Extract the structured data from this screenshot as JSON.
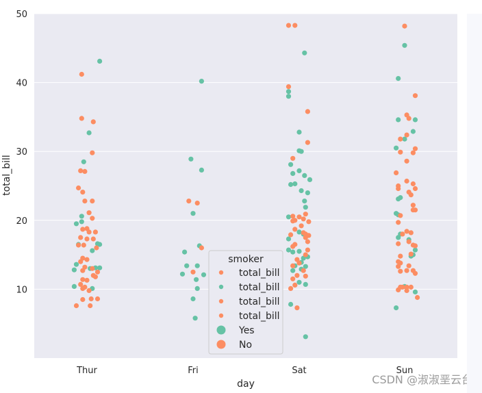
{
  "chart_data": {
    "type": "scatter",
    "subtype": "strip",
    "xlabel": "day",
    "ylabel": "total_bill",
    "categories": [
      "Thur",
      "Fri",
      "Sat",
      "Sun"
    ],
    "ylim": [
      0,
      50
    ],
    "yticks": [
      10,
      20,
      30,
      40,
      50
    ],
    "grid": true,
    "background": "#eaeaf2",
    "legend": {
      "title": "smoker",
      "placement": "lower center",
      "entries": [
        {
          "label": "total_bill",
          "color": "#fc8d62",
          "marker": "small"
        },
        {
          "label": "total_bill",
          "color": "#66c2a5",
          "marker": "small"
        },
        {
          "label": "total_bill",
          "color": "#fc8d62",
          "marker": "small"
        },
        {
          "label": "total_bill",
          "color": "#fc8d62",
          "marker": "small"
        },
        {
          "label": "Yes",
          "color": "#66c2a5",
          "marker": "large"
        },
        {
          "label": "No",
          "color": "#fc8d62",
          "marker": "large"
        }
      ]
    },
    "series": [
      {
        "name": "Yes",
        "color": "#66c2a5",
        "points": [
          [
            "Thur",
            -0.05,
            20.6
          ],
          [
            "Thur",
            -0.1,
            19.5
          ],
          [
            "Thur",
            0.12,
            16.5
          ],
          [
            "Thur",
            -0.08,
            16.5
          ],
          [
            "Thur",
            0.05,
            15.6
          ],
          [
            "Thur",
            -0.1,
            13.6
          ],
          [
            "Thur",
            0.08,
            13.1
          ],
          [
            "Thur",
            0.12,
            13.1
          ],
          [
            "Thur",
            -0.12,
            12.8
          ],
          [
            "Thur",
            0.03,
            13.0
          ],
          [
            "Thur",
            -0.12,
            10.4
          ],
          [
            "Thur",
            0.05,
            10.1
          ],
          [
            "Thur",
            -0.03,
            28.5
          ],
          [
            "Thur",
            0.02,
            32.7
          ],
          [
            "Thur",
            0.12,
            43.1
          ],
          [
            "Thur",
            -0.05,
            19.8
          ],
          [
            "Thur",
            0.1,
            16.6
          ],
          [
            "Fri",
            -0.02,
            28.9
          ],
          [
            "Fri",
            0.08,
            27.3
          ],
          [
            "Fri",
            0.0,
            21.0
          ],
          [
            "Fri",
            0.06,
            16.3
          ],
          [
            "Fri",
            -0.08,
            15.4
          ],
          [
            "Fri",
            -0.06,
            13.4
          ],
          [
            "Fri",
            0.04,
            13.4
          ],
          [
            "Fri",
            -0.1,
            12.2
          ],
          [
            "Fri",
            0.1,
            12.1
          ],
          [
            "Fri",
            0.03,
            11.4
          ],
          [
            "Fri",
            0.04,
            10.1
          ],
          [
            "Fri",
            0.0,
            8.6
          ],
          [
            "Fri",
            0.02,
            5.8
          ],
          [
            "Fri",
            0.08,
            40.2
          ],
          [
            "Sat",
            0.05,
            44.3
          ],
          [
            "Sat",
            -0.1,
            38.7
          ],
          [
            "Sat",
            -0.1,
            38.0
          ],
          [
            "Sat",
            0.0,
            32.8
          ],
          [
            "Sat",
            0.0,
            30.1
          ],
          [
            "Sat",
            0.02,
            30.0
          ],
          [
            "Sat",
            -0.08,
            28.1
          ],
          [
            "Sat",
            0.0,
            27.2
          ],
          [
            "Sat",
            -0.06,
            26.8
          ],
          [
            "Sat",
            0.05,
            26.5
          ],
          [
            "Sat",
            0.1,
            25.9
          ],
          [
            "Sat",
            -0.04,
            25.3
          ],
          [
            "Sat",
            -0.08,
            25.2
          ],
          [
            "Sat",
            0.02,
            24.3
          ],
          [
            "Sat",
            0.08,
            24.0
          ],
          [
            "Sat",
            0.05,
            22.8
          ],
          [
            "Sat",
            0.06,
            21.9
          ],
          [
            "Sat",
            -0.1,
            20.5
          ],
          [
            "Sat",
            0.0,
            18.3
          ],
          [
            "Sat",
            0.04,
            18.0
          ],
          [
            "Sat",
            -0.1,
            15.7
          ],
          [
            "Sat",
            -0.06,
            15.4
          ],
          [
            "Sat",
            0.0,
            15.5
          ],
          [
            "Sat",
            0.04,
            14.5
          ],
          [
            "Sat",
            0.02,
            13.9
          ],
          [
            "Sat",
            -0.04,
            13.4
          ],
          [
            "Sat",
            0.06,
            13.3
          ],
          [
            "Sat",
            -0.06,
            12.7
          ],
          [
            "Sat",
            0.02,
            12.9
          ],
          [
            "Sat",
            0.0,
            11.0
          ],
          [
            "Sat",
            0.06,
            10.7
          ],
          [
            "Sat",
            -0.08,
            7.8
          ],
          [
            "Sat",
            0.06,
            3.1
          ],
          [
            "Sat",
            -0.1,
            17.3
          ],
          [
            "Sat",
            0.08,
            14.7
          ],
          [
            "Sun",
            0.0,
            45.4
          ],
          [
            "Sun",
            -0.06,
            40.6
          ],
          [
            "Sun",
            -0.06,
            34.6
          ],
          [
            "Sun",
            0.1,
            34.6
          ],
          [
            "Sun",
            0.08,
            32.9
          ],
          [
            "Sun",
            -0.08,
            30.5
          ],
          [
            "Sun",
            0.0,
            31.8
          ],
          [
            "Sun",
            -0.04,
            23.3
          ],
          [
            "Sun",
            -0.06,
            23.1
          ],
          [
            "Sun",
            -0.08,
            21.0
          ],
          [
            "Sun",
            -0.06,
            20.8
          ],
          [
            "Sun",
            -0.04,
            18.0
          ],
          [
            "Sun",
            -0.06,
            17.5
          ],
          [
            "Sun",
            0.1,
            15.7
          ],
          [
            "Sun",
            0.08,
            15.0
          ],
          [
            "Sun",
            0.06,
            14.8
          ],
          [
            "Sun",
            0.0,
            10.4
          ],
          [
            "Sun",
            0.1,
            9.6
          ],
          [
            "Sun",
            -0.08,
            7.3
          ],
          [
            "Sun",
            0.04,
            17.2
          ]
        ]
      },
      {
        "name": "No",
        "color": "#fc8d62",
        "points": [
          [
            "Thur",
            -0.05,
            41.2
          ],
          [
            "Thur",
            -0.05,
            34.8
          ],
          [
            "Thur",
            0.06,
            34.3
          ],
          [
            "Thur",
            0.05,
            29.8
          ],
          [
            "Thur",
            -0.06,
            27.2
          ],
          [
            "Thur",
            -0.02,
            27.1
          ],
          [
            "Thur",
            -0.08,
            24.7
          ],
          [
            "Thur",
            -0.04,
            24.1
          ],
          [
            "Thur",
            -0.02,
            22.8
          ],
          [
            "Thur",
            0.05,
            22.8
          ],
          [
            "Thur",
            0.02,
            21.1
          ],
          [
            "Thur",
            0.05,
            20.3
          ],
          [
            "Thur",
            0.0,
            18.8
          ],
          [
            "Thur",
            -0.04,
            18.7
          ],
          [
            "Thur",
            0.02,
            18.3
          ],
          [
            "Thur",
            0.08,
            18.3
          ],
          [
            "Thur",
            -0.06,
            17.5
          ],
          [
            "Thur",
            0.0,
            17.3
          ],
          [
            "Thur",
            0.06,
            17.3
          ],
          [
            "Thur",
            -0.08,
            16.4
          ],
          [
            "Thur",
            0.09,
            16.0
          ],
          [
            "Thur",
            -0.03,
            16.4
          ],
          [
            "Thur",
            -0.04,
            14.5
          ],
          [
            "Thur",
            0.0,
            14.3
          ],
          [
            "Thur",
            -0.06,
            14.0
          ],
          [
            "Thur",
            -0.02,
            13.2
          ],
          [
            "Thur",
            0.05,
            13.0
          ],
          [
            "Thur",
            -0.04,
            12.7
          ],
          [
            "Thur",
            0.1,
            12.5
          ],
          [
            "Thur",
            0.06,
            12.0
          ],
          [
            "Thur",
            0.08,
            11.8
          ],
          [
            "Thur",
            -0.04,
            11.4
          ],
          [
            "Thur",
            0.0,
            11.3
          ],
          [
            "Thur",
            -0.06,
            10.7
          ],
          [
            "Thur",
            -0.02,
            10.3
          ],
          [
            "Thur",
            -0.04,
            10.1
          ],
          [
            "Thur",
            0.02,
            9.8
          ],
          [
            "Thur",
            -0.04,
            8.5
          ],
          [
            "Thur",
            0.04,
            8.6
          ],
          [
            "Thur",
            0.1,
            8.6
          ],
          [
            "Thur",
            -0.1,
            7.6
          ],
          [
            "Thur",
            0.03,
            7.6
          ],
          [
            "Fri",
            -0.04,
            22.8
          ],
          [
            "Fri",
            0.04,
            22.5
          ],
          [
            "Fri",
            0.08,
            16.0
          ],
          [
            "Fri",
            0.0,
            12.5
          ],
          [
            "Sat",
            -0.1,
            48.3
          ],
          [
            "Sat",
            -0.04,
            48.3
          ],
          [
            "Sat",
            -0.1,
            39.4
          ],
          [
            "Sat",
            0.08,
            35.8
          ],
          [
            "Sat",
            0.08,
            31.3
          ],
          [
            "Sat",
            -0.06,
            29.0
          ],
          [
            "Sat",
            0.06,
            20.9
          ],
          [
            "Sat",
            0.09,
            19.8
          ],
          [
            "Sat",
            -0.06,
            20.6
          ],
          [
            "Sat",
            0.0,
            20.5
          ],
          [
            "Sat",
            0.04,
            20.2
          ],
          [
            "Sat",
            -0.04,
            20.0
          ],
          [
            "Sat",
            -0.06,
            19.9
          ],
          [
            "Sat",
            0.02,
            19.2
          ],
          [
            "Sat",
            -0.04,
            18.7
          ],
          [
            "Sat",
            0.04,
            18.2
          ],
          [
            "Sat",
            0.06,
            18.0
          ],
          [
            "Sat",
            0.09,
            17.8
          ],
          [
            "Sat",
            -0.08,
            17.9
          ],
          [
            "Sat",
            0.06,
            17.5
          ],
          [
            "Sat",
            0.08,
            16.9
          ],
          [
            "Sat",
            -0.06,
            16.2
          ],
          [
            "Sat",
            -0.04,
            16.5
          ],
          [
            "Sat",
            0.08,
            15.7
          ],
          [
            "Sat",
            0.06,
            15.0
          ],
          [
            "Sat",
            -0.02,
            14.3
          ],
          [
            "Sat",
            0.0,
            13.8
          ],
          [
            "Sat",
            -0.06,
            13.4
          ],
          [
            "Sat",
            0.04,
            12.7
          ],
          [
            "Sat",
            -0.02,
            12.0
          ],
          [
            "Sat",
            -0.06,
            11.5
          ],
          [
            "Sat",
            -0.04,
            10.6
          ],
          [
            "Sat",
            -0.08,
            10.1
          ],
          [
            "Sat",
            -0.02,
            7.3
          ],
          [
            "Sat",
            0.06,
            11.9
          ],
          [
            "Sun",
            0.0,
            48.2
          ],
          [
            "Sun",
            0.1,
            38.1
          ],
          [
            "Sun",
            0.02,
            35.3
          ],
          [
            "Sun",
            0.04,
            34.8
          ],
          [
            "Sun",
            0.02,
            32.4
          ],
          [
            "Sun",
            -0.04,
            31.8
          ],
          [
            "Sun",
            0.1,
            30.4
          ],
          [
            "Sun",
            -0.04,
            29.9
          ],
          [
            "Sun",
            0.08,
            29.8
          ],
          [
            "Sun",
            0.02,
            28.6
          ],
          [
            "Sun",
            -0.08,
            26.9
          ],
          [
            "Sun",
            0.02,
            25.7
          ],
          [
            "Sun",
            0.08,
            25.3
          ],
          [
            "Sun",
            -0.06,
            25.0
          ],
          [
            "Sun",
            -0.06,
            24.6
          ],
          [
            "Sun",
            0.1,
            24.6
          ],
          [
            "Sun",
            0.04,
            24.1
          ],
          [
            "Sun",
            0.06,
            23.7
          ],
          [
            "Sun",
            0.08,
            22.2
          ],
          [
            "Sun",
            0.08,
            21.5
          ],
          [
            "Sun",
            0.1,
            21.5
          ],
          [
            "Sun",
            -0.04,
            20.7
          ],
          [
            "Sun",
            -0.06,
            19.7
          ],
          [
            "Sun",
            0.02,
            18.4
          ],
          [
            "Sun",
            0.06,
            18.2
          ],
          [
            "Sun",
            -0.02,
            18.0
          ],
          [
            "Sun",
            -0.06,
            16.6
          ],
          [
            "Sun",
            0.04,
            16.9
          ],
          [
            "Sun",
            0.08,
            16.4
          ],
          [
            "Sun",
            0.1,
            16.3
          ],
          [
            "Sun",
            -0.04,
            14.8
          ],
          [
            "Sun",
            0.06,
            15.1
          ],
          [
            "Sun",
            -0.06,
            14.0
          ],
          [
            "Sun",
            -0.04,
            13.8
          ],
          [
            "Sun",
            0.04,
            13.4
          ],
          [
            "Sun",
            -0.06,
            13.3
          ],
          [
            "Sun",
            0.02,
            12.7
          ],
          [
            "Sun",
            -0.04,
            12.6
          ],
          [
            "Sun",
            0.08,
            12.7
          ],
          [
            "Sun",
            0.1,
            12.3
          ],
          [
            "Sun",
            -0.04,
            10.3
          ],
          [
            "Sun",
            -0.02,
            10.3
          ],
          [
            "Sun",
            0.02,
            10.3
          ],
          [
            "Sun",
            0.06,
            10.3
          ],
          [
            "Sun",
            -0.06,
            9.9
          ],
          [
            "Sun",
            0.02,
            9.8
          ],
          [
            "Sun",
            0.12,
            8.8
          ]
        ]
      }
    ]
  },
  "watermark": "CSDN @淑淑垩云台"
}
